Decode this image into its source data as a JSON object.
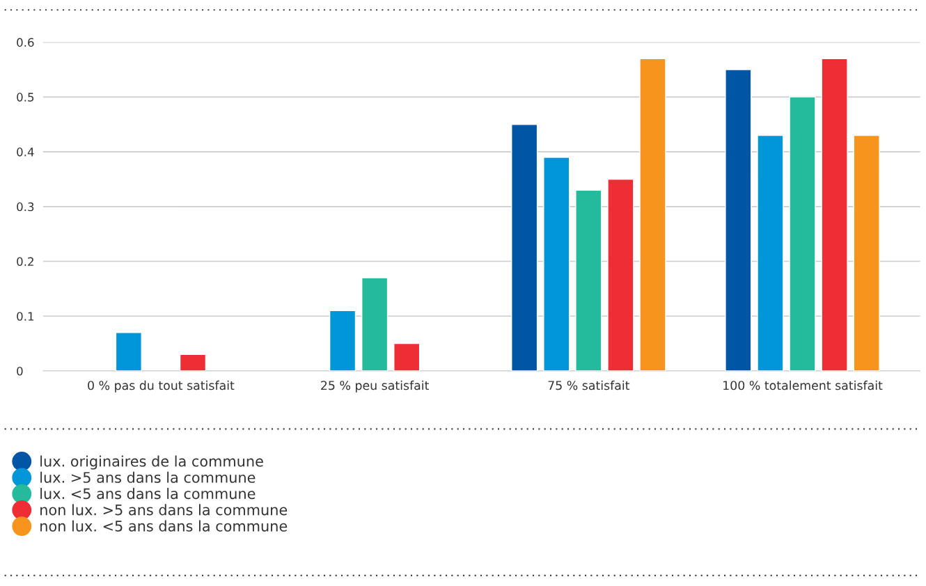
{
  "chart_data": {
    "type": "bar",
    "categories": [
      "0 % pas du tout satisfait",
      "25 % peu satisfait",
      "75 % satisfait",
      "100 % totalement satisfait"
    ],
    "series": [
      {
        "name": "lux. originaires de la commune",
        "color": "#0055a5",
        "values": [
          null,
          null,
          0.45,
          0.55
        ]
      },
      {
        "name": "lux. >5 ans dans la commune",
        "color": "#0096d8",
        "values": [
          0.07,
          0.11,
          0.39,
          0.43
        ]
      },
      {
        "name": "lux. <5 ans dans la commune",
        "color": "#23bb9b",
        "values": [
          null,
          0.17,
          0.33,
          0.5
        ]
      },
      {
        "name": "non lux. >5 ans dans la commune",
        "color": "#ee2e34",
        "values": [
          0.03,
          0.05,
          0.35,
          0.57
        ]
      },
      {
        "name": "non lux. <5 ans dans la commune",
        "color": "#f7941d",
        "values": [
          null,
          null,
          0.57,
          0.43
        ]
      }
    ],
    "ylim": [
      0,
      0.6
    ],
    "yticks": [
      0,
      0.1,
      0.2,
      0.3,
      0.4,
      0.5,
      0.6
    ],
    "grid": "y",
    "legend": "bottom",
    "marker": "circle"
  }
}
